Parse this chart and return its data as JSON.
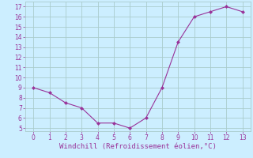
{
  "xlabel": "Windchill (Refroidissement éolien,°C)",
  "x": [
    0,
    1,
    2,
    3,
    4,
    5,
    6,
    7,
    8,
    9,
    10,
    11,
    12,
    13
  ],
  "y": [
    9,
    8.5,
    7.5,
    7,
    5.5,
    5.5,
    5,
    6,
    9,
    13.5,
    16,
    16.5,
    17,
    16.5
  ],
  "line_color": "#993399",
  "marker": "D",
  "marker_size": 2.0,
  "bg_color": "#cceeff",
  "grid_color": "#aacccc",
  "ylim": [
    5,
    17
  ],
  "xlim": [
    0,
    13
  ],
  "yticks": [
    5,
    6,
    7,
    8,
    9,
    10,
    11,
    12,
    13,
    14,
    15,
    16,
    17
  ],
  "xticks": [
    0,
    1,
    2,
    3,
    4,
    5,
    6,
    7,
    8,
    9,
    10,
    11,
    12,
    13
  ],
  "tick_color": "#993399",
  "label_color": "#993399",
  "tick_fontsize": 5.5,
  "xlabel_fontsize": 6.5
}
